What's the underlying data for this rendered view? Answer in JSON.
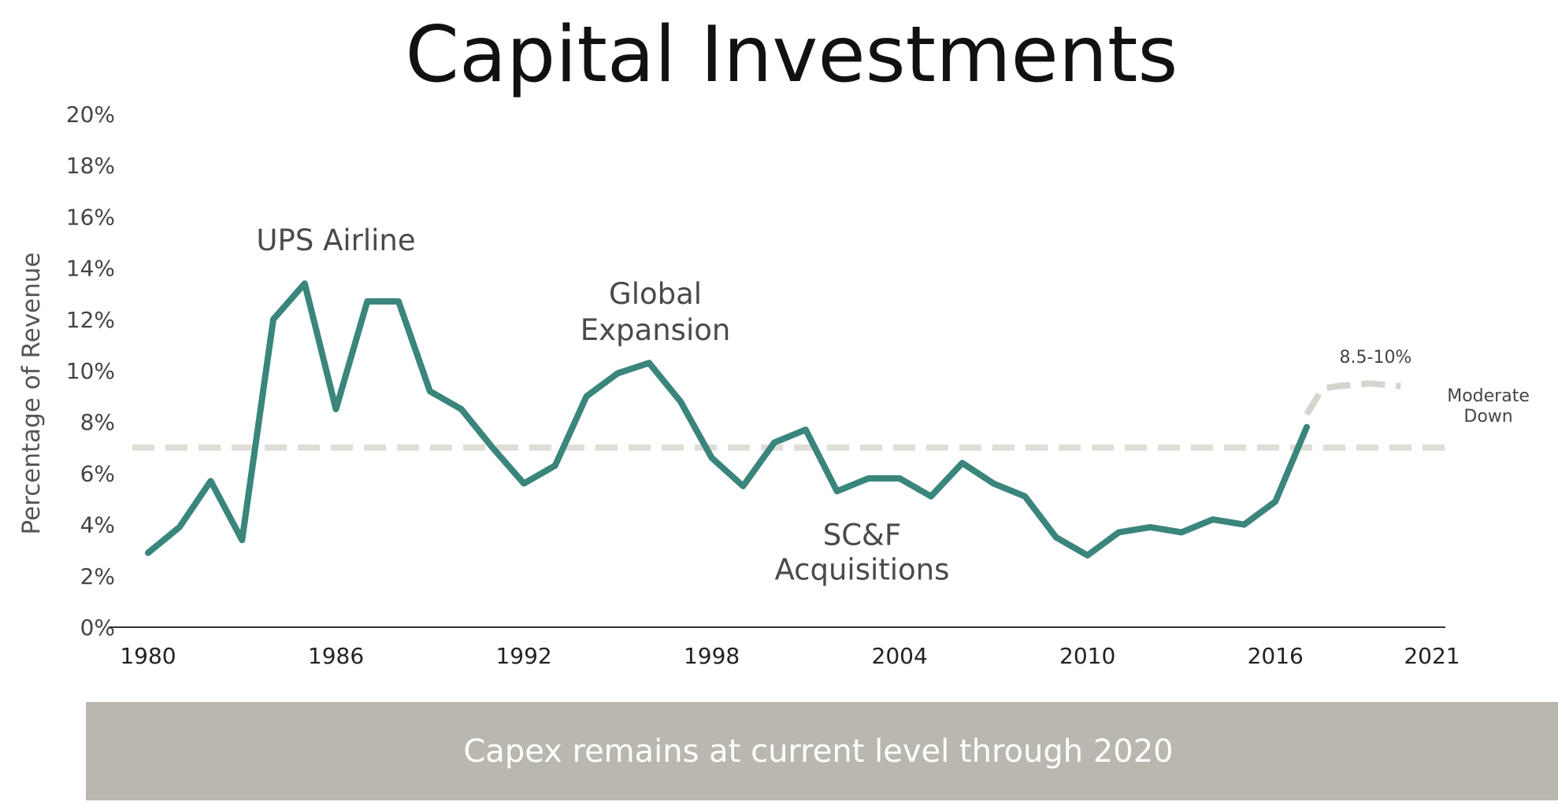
{
  "title": "Capital Investments",
  "footer": "Capex remains at current level through 2020",
  "chart_data": {
    "type": "line",
    "title": "Capital Investments",
    "xlabel": "",
    "ylabel": "Percentage of Revenue",
    "xlim": [
      1980,
      2021
    ],
    "ylim": [
      0,
      20
    ],
    "x_ticks": [
      "1980",
      "1986",
      "1992",
      "1998",
      "2004",
      "2010",
      "2016",
      "2021"
    ],
    "y_ticks": [
      "0%",
      "2%",
      "4%",
      "6%",
      "8%",
      "10%",
      "12%",
      "14%",
      "16%",
      "18%",
      "20%"
    ],
    "grid": false,
    "series": [
      {
        "color": "#3a857c",
        "style": "solid",
        "points": [
          [
            1980,
            2.9
          ],
          [
            1981,
            3.9
          ],
          [
            1982,
            5.7
          ],
          [
            1983,
            3.4
          ],
          [
            1984,
            12.0
          ],
          [
            1985,
            13.4
          ],
          [
            1986,
            8.5
          ],
          [
            1987,
            12.7
          ],
          [
            1988,
            12.7
          ],
          [
            1989,
            9.2
          ],
          [
            1990,
            8.5
          ],
          [
            1991,
            7.0
          ],
          [
            1992,
            5.6
          ],
          [
            1993,
            6.3
          ],
          [
            1994,
            9.0
          ],
          [
            1995,
            9.9
          ],
          [
            1996,
            10.3
          ],
          [
            1997,
            8.8
          ],
          [
            1998,
            6.6
          ],
          [
            1999,
            5.5
          ],
          [
            2000,
            7.2
          ],
          [
            2001,
            7.7
          ],
          [
            2002,
            5.3
          ],
          [
            2003,
            5.8
          ],
          [
            2004,
            5.8
          ],
          [
            2005,
            5.1
          ],
          [
            2006,
            6.4
          ],
          [
            2007,
            5.6
          ],
          [
            2008,
            5.1
          ],
          [
            2009,
            3.5
          ],
          [
            2010,
            2.8
          ],
          [
            2011,
            3.7
          ],
          [
            2012,
            3.9
          ],
          [
            2013,
            3.7
          ],
          [
            2014,
            4.2
          ],
          [
            2015,
            4.0
          ],
          [
            2016,
            4.9
          ],
          [
            2017,
            7.8
          ]
        ]
      },
      {
        "color": "#d6d4ce",
        "style": "dashed",
        "points": [
          [
            2017,
            8.3
          ],
          [
            2017.5,
            9.3
          ],
          [
            2018,
            9.4
          ],
          [
            2019,
            9.5
          ],
          [
            2020,
            9.4
          ]
        ]
      }
    ],
    "reference_line": {
      "y": 7.0,
      "color": "#e0ddd7",
      "style": "dashed"
    },
    "annotations": [
      {
        "text": "UPS Airline",
        "x": 1986,
        "y": 14.7,
        "size": "large"
      },
      {
        "text": "Global",
        "x": 1996.2,
        "y": 12.6,
        "size": "large"
      },
      {
        "text": "Expansion",
        "x": 1996.2,
        "y": 11.2,
        "size": "large"
      },
      {
        "text": "SC&F",
        "x": 2002.8,
        "y": 3.2,
        "size": "large"
      },
      {
        "text": "Acquisitions",
        "x": 2002.8,
        "y": 1.85,
        "size": "large"
      },
      {
        "text": "8.5-10%",
        "x": 2019.2,
        "y": 10.3,
        "size": "small"
      },
      {
        "text": "Moderate",
        "x": 2022.8,
        "y": 8.8,
        "size": "small"
      },
      {
        "text": "Down",
        "x": 2022.8,
        "y": 8.0,
        "size": "small"
      }
    ]
  }
}
